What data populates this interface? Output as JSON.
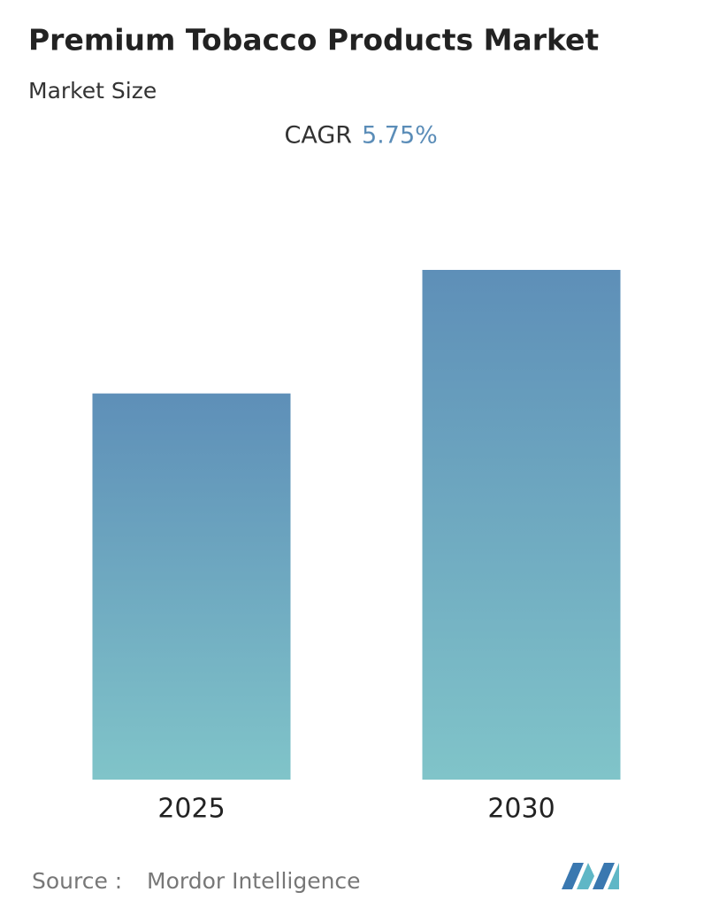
{
  "chart_data": {
    "type": "bar",
    "title": "Premium Tobacco Products Market",
    "subtitle": "Market Size",
    "cagr_label": "CAGR",
    "cagr_value": "5.75%",
    "categories": [
      "2025",
      "2030"
    ],
    "values": [
      1,
      1.32
    ],
    "source_label": "Source :",
    "source": "Mordor Intelligence"
  }
}
